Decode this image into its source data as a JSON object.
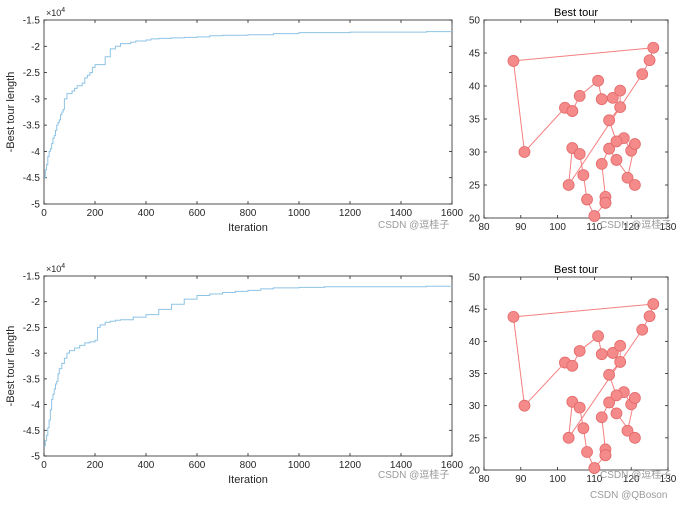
{
  "chart_data": [
    {
      "type": "line",
      "xlabel": "Iteration",
      "ylabel": "-Best tour length",
      "xlim": [
        0,
        1600
      ],
      "ylim": [
        -5,
        -1.5
      ],
      "y_exponent": "×10^4",
      "xticks": [
        "0",
        "200",
        "400",
        "600",
        "800",
        "1000",
        "1200",
        "1400",
        "1600"
      ],
      "yticks": [
        "-1.5",
        "-2",
        "-2.5",
        "-3",
        "-3.5",
        "-4",
        "-4.5",
        "-5"
      ],
      "color": "#8EC3E6",
      "series": [
        {
          "x": [
            1,
            5,
            10,
            15,
            20,
            25,
            30,
            35,
            40,
            45,
            50,
            55,
            60,
            65,
            70,
            75,
            80,
            90,
            100,
            110,
            120,
            130,
            140,
            150,
            160,
            170,
            180,
            190,
            200,
            210,
            220,
            240,
            260,
            280,
            300,
            320,
            340,
            360,
            380,
            400,
            420,
            450,
            500,
            550,
            600,
            650,
            700,
            800,
            900,
            1000,
            1100,
            1200,
            1300,
            1400,
            1500,
            1600
          ],
          "y": [
            -4.5,
            -4.35,
            -4.25,
            -4.1,
            -4.0,
            -3.95,
            -3.85,
            -3.75,
            -3.7,
            -3.6,
            -3.5,
            -3.45,
            -3.4,
            -3.3,
            -3.25,
            -3.2,
            -3.0,
            -2.9,
            -2.9,
            -2.85,
            -2.8,
            -2.75,
            -2.75,
            -2.7,
            -2.6,
            -2.55,
            -2.5,
            -2.4,
            -2.35,
            -2.35,
            -2.35,
            -2.2,
            -2.05,
            -2.0,
            -1.95,
            -1.95,
            -1.92,
            -1.9,
            -1.9,
            -1.88,
            -1.86,
            -1.85,
            -1.84,
            -1.83,
            -1.82,
            -1.8,
            -1.79,
            -1.78,
            -1.76,
            -1.74,
            -1.74,
            -1.73,
            -1.73,
            -1.73,
            -1.72,
            -1.72
          ]
        }
      ]
    },
    {
      "type": "scatter",
      "title": "Best tour",
      "xlim": [
        80,
        130
      ],
      "ylim": [
        20,
        50
      ],
      "xticks": [
        "80",
        "90",
        "100",
        "110",
        "120",
        "130"
      ],
      "yticks": [
        "20",
        "25",
        "30",
        "35",
        "40",
        "45",
        "50"
      ],
      "color": "#F57F7F",
      "x": [
        88,
        91,
        102,
        104,
        103,
        104,
        106,
        106,
        108,
        110,
        111,
        112,
        113,
        113,
        114,
        114,
        115,
        116,
        117,
        117,
        118,
        119,
        120,
        121,
        121,
        123,
        125,
        126,
        107,
        112,
        113,
        116
      ],
      "y": [
        43.8,
        30,
        36.7,
        36.2,
        25,
        30.6,
        38.5,
        29.7,
        22.8,
        20.3,
        40.8,
        38,
        23.2,
        22.3,
        34.8,
        30.5,
        38.2,
        28.8,
        36.8,
        39.3,
        32.1,
        26.1,
        30.2,
        31.2,
        25,
        41.8,
        43.9,
        45.8,
        26.5,
        28.2,
        22.3,
        31.6
      ],
      "tour_order": [
        0,
        6,
        3,
        2,
        1,
        0
      ]
    },
    {
      "type": "line",
      "xlabel": "Iteration",
      "ylabel": "-Best tour length",
      "xlim": [
        0,
        1600
      ],
      "ylim": [
        -5,
        -1.5
      ],
      "y_exponent": "×10^4",
      "xticks": [
        "0",
        "200",
        "400",
        "600",
        "800",
        "1000",
        "1200",
        "1400",
        "1600"
      ],
      "yticks": [
        "-1.5",
        "-2",
        "-2.5",
        "-3",
        "-3.5",
        "-4",
        "-4.5",
        "-5"
      ],
      "color": "#8EC3E6",
      "series": [
        {
          "x": [
            1,
            5,
            10,
            15,
            20,
            25,
            30,
            35,
            40,
            45,
            50,
            55,
            60,
            70,
            80,
            90,
            100,
            120,
            140,
            160,
            180,
            200,
            210,
            220,
            240,
            260,
            280,
            300,
            350,
            400,
            450,
            500,
            550,
            600,
            650,
            700,
            750,
            800,
            850,
            900,
            1000,
            1100,
            1200,
            1300,
            1400,
            1500,
            1600
          ],
          "y": [
            -4.8,
            -4.7,
            -4.6,
            -4.45,
            -4.3,
            -4.1,
            -3.9,
            -3.8,
            -3.7,
            -3.6,
            -3.55,
            -3.4,
            -3.3,
            -3.2,
            -3.1,
            -3.0,
            -2.95,
            -2.9,
            -2.85,
            -2.8,
            -2.78,
            -2.75,
            -2.5,
            -2.45,
            -2.4,
            -2.38,
            -2.36,
            -2.35,
            -2.3,
            -2.25,
            -2.15,
            -2.05,
            -1.95,
            -1.88,
            -1.85,
            -1.82,
            -1.8,
            -1.78,
            -1.75,
            -1.73,
            -1.72,
            -1.71,
            -1.71,
            -1.71,
            -1.71,
            -1.7,
            -1.7
          ]
        }
      ]
    },
    {
      "type": "scatter",
      "title": "Best tour",
      "xlim": [
        80,
        130
      ],
      "ylim": [
        20,
        50
      ],
      "xticks": [
        "80",
        "90",
        "100",
        "110",
        "120",
        "130"
      ],
      "yticks": [
        "20",
        "25",
        "30",
        "35",
        "40",
        "45",
        "50"
      ],
      "color": "#F57F7F",
      "x": [
        88,
        91,
        102,
        104,
        103,
        104,
        106,
        106,
        108,
        110,
        111,
        112,
        113,
        113,
        114,
        114,
        115,
        116,
        117,
        117,
        118,
        119,
        120,
        121,
        121,
        123,
        125,
        126,
        107,
        112,
        113,
        116
      ],
      "y": [
        43.8,
        30,
        36.7,
        36.2,
        25,
        30.6,
        38.5,
        29.7,
        22.8,
        20.3,
        40.8,
        38,
        23.2,
        22.3,
        34.8,
        30.5,
        38.2,
        28.8,
        36.8,
        39.3,
        32.1,
        26.1,
        30.2,
        31.2,
        25,
        41.8,
        43.9,
        45.8,
        26.5,
        28.2,
        22.3,
        31.6
      ]
    }
  ],
  "watermarks": [
    "CSDN @逗桂子",
    "CSDN @逗桂子",
    "CSDN @逗桂子",
    "CSDN @逗桂子",
    "CSDN @QBoson"
  ],
  "footer": "CSDN @QBoson"
}
